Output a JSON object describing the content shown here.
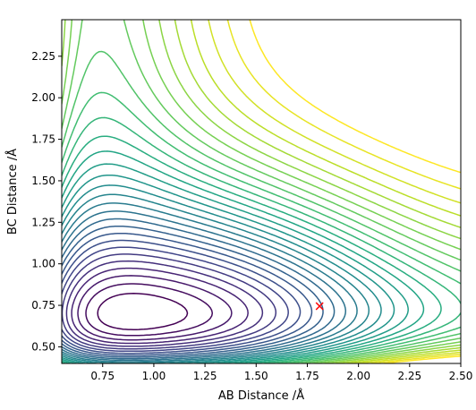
{
  "chart_data": {
    "type": "contour",
    "title": "",
    "xlabel": "AB Distance /Å",
    "ylabel": "BC Distance /Å",
    "xlim": [
      0.55,
      2.5
    ],
    "ylim": [
      0.4,
      2.47
    ],
    "xticks": [
      0.75,
      1.0,
      1.25,
      1.5,
      1.75,
      2.0,
      2.25,
      2.5
    ],
    "xtick_labels": [
      "0.75",
      "1.00",
      "1.25",
      "1.50",
      "1.75",
      "2.00",
      "2.25",
      "2.50"
    ],
    "yticks": [
      0.5,
      0.75,
      1.0,
      1.25,
      1.5,
      1.75,
      2.0,
      2.25
    ],
    "ytick_labels": [
      "0.50",
      "0.75",
      "1.00",
      "1.25",
      "1.50",
      "1.75",
      "2.00",
      "2.25"
    ],
    "grid": false,
    "legend": "none",
    "colormap": "viridis",
    "contour_levels": 30,
    "marker": {
      "x": 1.81,
      "y": 0.745,
      "symbol": "x",
      "color": "#ff0000"
    }
  }
}
